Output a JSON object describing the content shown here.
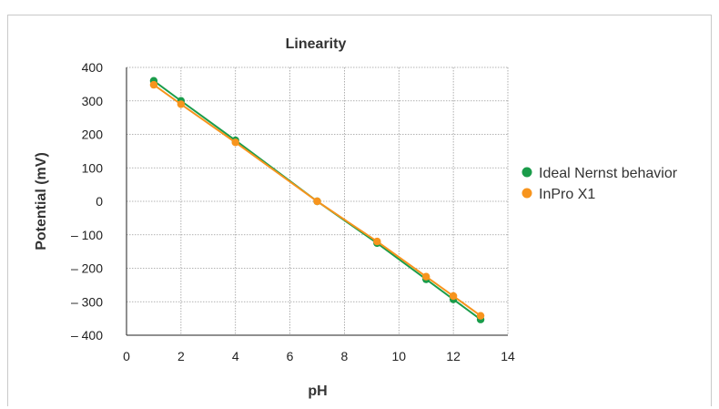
{
  "chart_data": {
    "type": "line",
    "title": "Linearity",
    "xlabel": "pH",
    "ylabel": "Potential (mV)",
    "xlim": [
      0,
      14
    ],
    "ylim": [
      -400,
      400
    ],
    "x_ticks": [
      0,
      2,
      4,
      6,
      8,
      10,
      12,
      14
    ],
    "y_ticks": [
      400,
      300,
      200,
      100,
      0,
      -100,
      -200,
      -300,
      -400
    ],
    "y_tick_labels": [
      "400",
      "300",
      "200",
      "100",
      "0",
      "– 100",
      "– 200",
      "– 300",
      "– 400"
    ],
    "grid": true,
    "legend_position": "right",
    "series": [
      {
        "name": "Ideal Nernst behavior",
        "color": "#1a9c4a",
        "x": [
          1,
          2,
          4,
          7,
          9.2,
          11,
          12,
          13
        ],
        "y": [
          360,
          300,
          182,
          0,
          -125,
          -233,
          -293,
          -353
        ]
      },
      {
        "name": "InPro X1",
        "color": "#f7941d",
        "x": [
          1,
          2,
          4,
          7,
          9.2,
          11,
          12,
          13
        ],
        "y": [
          348,
          290,
          176,
          0,
          -120,
          -225,
          -283,
          -342
        ]
      }
    ]
  }
}
